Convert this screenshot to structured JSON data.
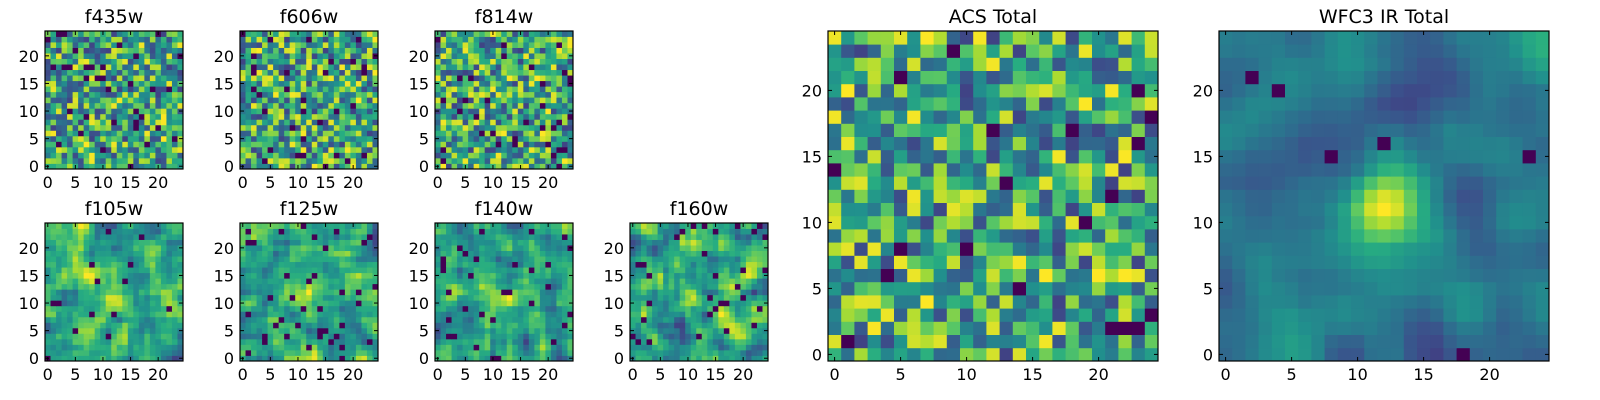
{
  "figure": {
    "colormap": "viridis",
    "colors": {
      "viridis": [
        "#440154",
        "#472c7a",
        "#3b518b",
        "#2c718e",
        "#21908d",
        "#27ad81",
        "#5cc863",
        "#aadc32",
        "#fde725"
      ],
      "axis": "#000000",
      "background": "#ffffff"
    }
  },
  "chart_data": [
    {
      "type": "heatmap",
      "title": "f435w",
      "size": 25,
      "seed": 11,
      "smooth": 0,
      "center": 0.0,
      "outliers": 0.06,
      "xticks": [
        0,
        5,
        10,
        15,
        20
      ],
      "yticks": [
        0,
        5,
        10,
        15,
        20
      ],
      "xlim": [
        0,
        25
      ],
      "ylim": [
        0,
        25
      ]
    },
    {
      "type": "heatmap",
      "title": "f606w",
      "size": 25,
      "seed": 23,
      "smooth": 0,
      "center": 0.0,
      "outliers": 0.05,
      "xticks": [
        0,
        5,
        10,
        15,
        20
      ],
      "yticks": [
        0,
        5,
        10,
        15,
        20
      ],
      "xlim": [
        0,
        25
      ],
      "ylim": [
        0,
        25
      ]
    },
    {
      "type": "heatmap",
      "title": "f814w",
      "size": 25,
      "seed": 37,
      "smooth": 0,
      "center": 0.0,
      "outliers": 0.05,
      "xticks": [
        0,
        5,
        10,
        15,
        20
      ],
      "yticks": [
        0,
        5,
        10,
        15,
        20
      ],
      "xlim": [
        0,
        25
      ],
      "ylim": [
        0,
        25
      ]
    },
    {
      "type": "heatmap",
      "title": "f105w",
      "size": 25,
      "seed": 41,
      "smooth": 1,
      "center": 0.35,
      "outliers": 0.03,
      "xticks": [
        0,
        5,
        10,
        15,
        20
      ],
      "yticks": [
        0,
        5,
        10,
        15,
        20
      ],
      "xlim": [
        0,
        25
      ],
      "ylim": [
        0,
        25
      ]
    },
    {
      "type": "heatmap",
      "title": "f125w",
      "size": 25,
      "seed": 53,
      "smooth": 1,
      "center": 0.2,
      "outliers": 0.05,
      "xticks": [
        0,
        5,
        10,
        15,
        20
      ],
      "yticks": [
        0,
        5,
        10,
        15,
        20
      ],
      "xlim": [
        0,
        25
      ],
      "ylim": [
        0,
        25
      ]
    },
    {
      "type": "heatmap",
      "title": "f140w",
      "size": 25,
      "seed": 67,
      "smooth": 1,
      "center": 0.2,
      "outliers": 0.04,
      "xticks": [
        0,
        5,
        10,
        15,
        20
      ],
      "yticks": [
        0,
        5,
        10,
        15,
        20
      ],
      "xlim": [
        0,
        25
      ],
      "ylim": [
        0,
        25
      ]
    },
    {
      "type": "heatmap",
      "title": "f160w",
      "size": 25,
      "seed": 79,
      "smooth": 1,
      "center": 0.15,
      "outliers": 0.05,
      "xticks": [
        0,
        5,
        10,
        15,
        20
      ],
      "yticks": [
        0,
        5,
        10,
        15,
        20
      ],
      "xlim": [
        0,
        25
      ],
      "ylim": [
        0,
        25
      ]
    },
    {
      "type": "heatmap",
      "title": "ACS Total",
      "size": 25,
      "seed": 97,
      "smooth": 0,
      "center": 0.0,
      "outliers": 0.03,
      "xticks": [
        0,
        5,
        10,
        15,
        20
      ],
      "yticks": [
        0,
        5,
        10,
        15,
        20
      ],
      "xlim": [
        0,
        25
      ],
      "ylim": [
        0,
        25
      ]
    },
    {
      "type": "heatmap",
      "title": "WFC3 IR Total",
      "size": 25,
      "seed": 101,
      "smooth": 2,
      "center": 1.0,
      "outliers": 0.02,
      "xticks": [
        0,
        5,
        10,
        15,
        20
      ],
      "yticks": [
        0,
        5,
        10,
        15,
        20
      ],
      "xlim": [
        0,
        25
      ],
      "ylim": [
        0,
        25
      ]
    }
  ]
}
